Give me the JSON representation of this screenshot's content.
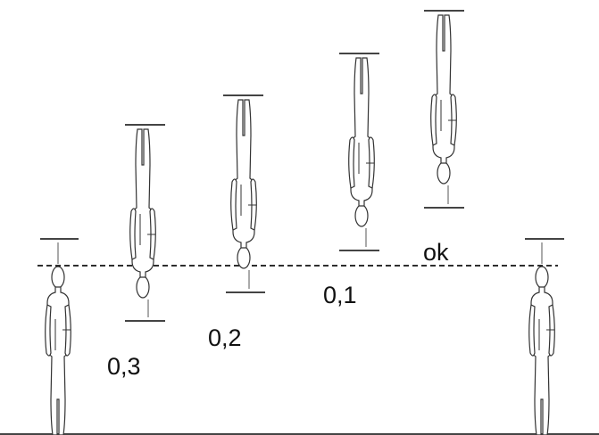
{
  "labels": [
    "0,3",
    "0,2",
    "0,1",
    "ok"
  ]
}
